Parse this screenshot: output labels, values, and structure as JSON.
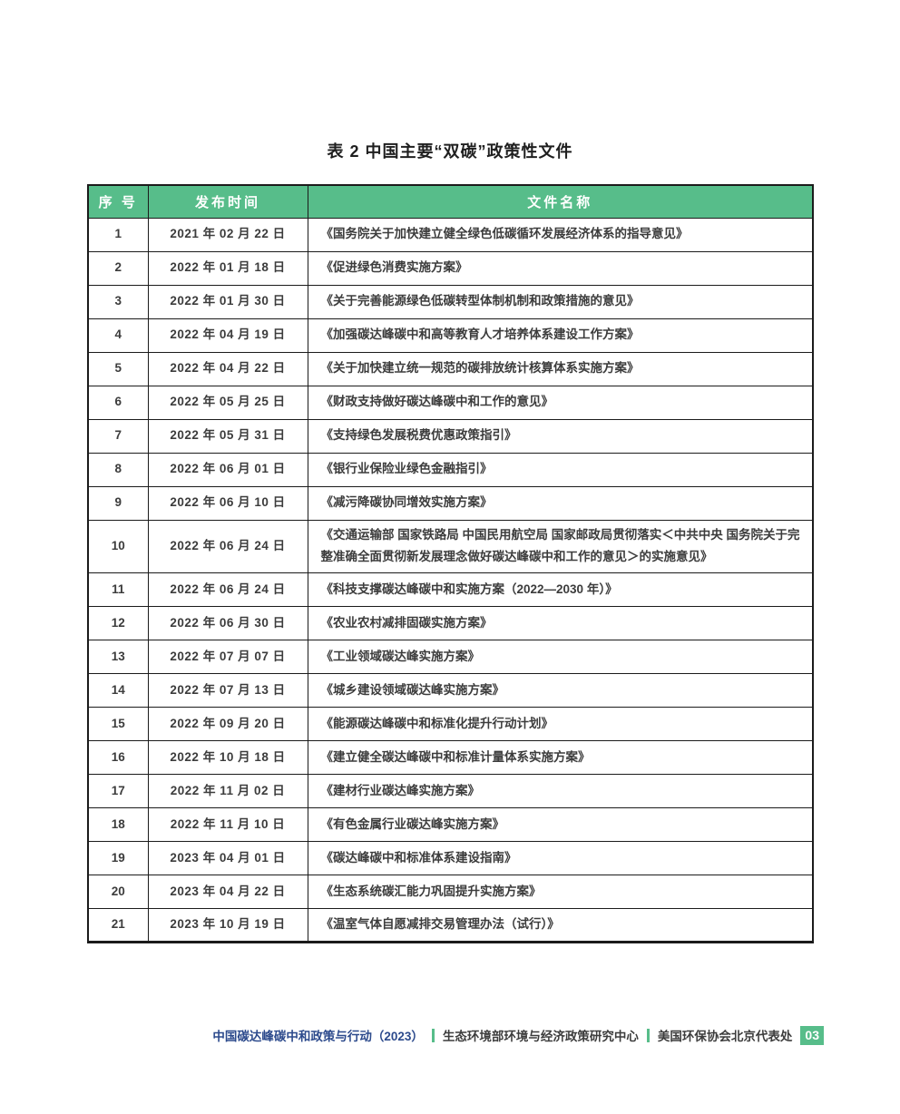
{
  "title": "表 2  中国主要“双碳”政策性文件",
  "table": {
    "headers": [
      "序 号",
      "发布时间",
      "文件名称"
    ],
    "rows": [
      {
        "no": "1",
        "date": "2021 年 02 月 22 日",
        "doc": "《国务院关于加快建立健全绿色低碳循环发展经济体系的指导意见》"
      },
      {
        "no": "2",
        "date": "2022 年 01 月 18 日",
        "doc": "《促进绿色消费实施方案》"
      },
      {
        "no": "3",
        "date": "2022 年 01 月 30 日",
        "doc": "《关于完善能源绿色低碳转型体制机制和政策措施的意见》"
      },
      {
        "no": "4",
        "date": "2022 年 04 月 19 日",
        "doc": "《加强碳达峰碳中和高等教育人才培养体系建设工作方案》"
      },
      {
        "no": "5",
        "date": "2022 年 04 月 22 日",
        "doc": "《关于加快建立统一规范的碳排放统计核算体系实施方案》"
      },
      {
        "no": "6",
        "date": "2022 年 05 月 25 日",
        "doc": "《财政支持做好碳达峰碳中和工作的意见》"
      },
      {
        "no": "7",
        "date": "2022 年 05 月 31 日",
        "doc": "《支持绿色发展税费优惠政策指引》"
      },
      {
        "no": "8",
        "date": "2022 年 06 月 01 日",
        "doc": "《银行业保险业绿色金融指引》"
      },
      {
        "no": "9",
        "date": "2022 年 06 月 10 日",
        "doc": "《减污降碳协同增效实施方案》"
      },
      {
        "no": "10",
        "date": "2022 年 06 月 24 日",
        "doc": "《交通运输部 国家铁路局 中国民用航空局 国家邮政局贯彻落实＜中共中央 国务院关于完整准确全面贯彻新发展理念做好碳达峰碳中和工作的意见＞的实施意见》"
      },
      {
        "no": "11",
        "date": "2022 年 06 月 24 日",
        "doc": "《科技支撑碳达峰碳中和实施方案（2022—2030 年）》"
      },
      {
        "no": "12",
        "date": "2022 年 06 月 30 日",
        "doc": "《农业农村减排固碳实施方案》"
      },
      {
        "no": "13",
        "date": "2022 年 07 月 07 日",
        "doc": "《工业领域碳达峰实施方案》"
      },
      {
        "no": "14",
        "date": "2022 年 07 月 13 日",
        "doc": "《城乡建设领域碳达峰实施方案》"
      },
      {
        "no": "15",
        "date": "2022 年 09 月 20 日",
        "doc": "《能源碳达峰碳中和标准化提升行动计划》"
      },
      {
        "no": "16",
        "date": "2022 年 10 月 18 日",
        "doc": "《建立健全碳达峰碳中和标准计量体系实施方案》"
      },
      {
        "no": "17",
        "date": "2022 年 11 月 02 日",
        "doc": "《建材行业碳达峰实施方案》"
      },
      {
        "no": "18",
        "date": "2022 年 11 月 10 日",
        "doc": "《有色金属行业碳达峰实施方案》"
      },
      {
        "no": "19",
        "date": "2023 年 04 月 01 日",
        "doc": "《碳达峰碳中和标准体系建设指南》"
      },
      {
        "no": "20",
        "date": "2023 年 04 月 22 日",
        "doc": "《生态系统碳汇能力巩固提升实施方案》"
      },
      {
        "no": "21",
        "date": "2023 年 10 月 19 日",
        "doc": "《温室气体自愿减排交易管理办法（试行）》"
      }
    ]
  },
  "footer": {
    "report_title": "中国碳达峰碳中和政策与行动（2023）",
    "org1": "生态环境部环境与经济政策研究中心",
    "org2": "美国环保协会北京代表处",
    "page_number": "03"
  },
  "colors": {
    "accent_green": "#57BD8A",
    "footer_blue": "#2C4A8C",
    "table_border": "#1B1B1B",
    "body_text": "#3C3C3C"
  }
}
